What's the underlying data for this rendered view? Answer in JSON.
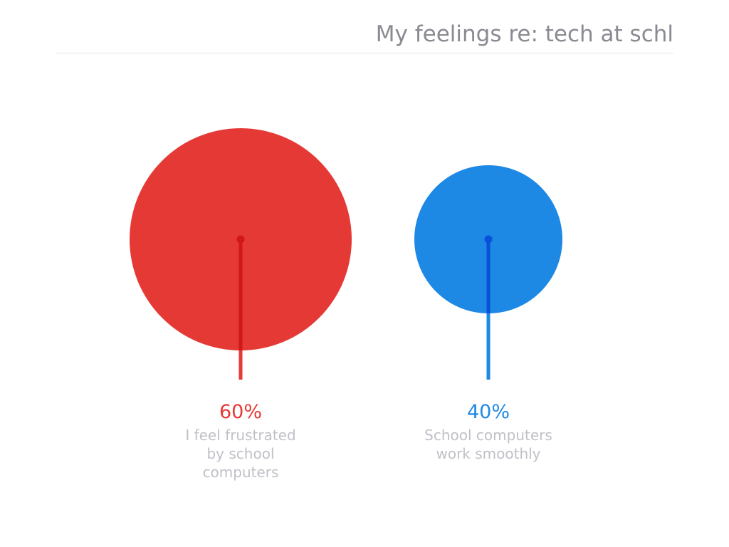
{
  "chart_data": {
    "type": "bubble",
    "title": "My feelings re: tech at schl",
    "categories": [
      "I feel frustrated by school computers",
      "School computers work smoothly"
    ],
    "values": [
      60,
      40
    ],
    "value_labels": [
      "60%",
      "40%"
    ],
    "colors": [
      "#e53935",
      "#1e88e5"
    ],
    "stem_colors": [
      "#d01818",
      "#0a50d8"
    ]
  }
}
